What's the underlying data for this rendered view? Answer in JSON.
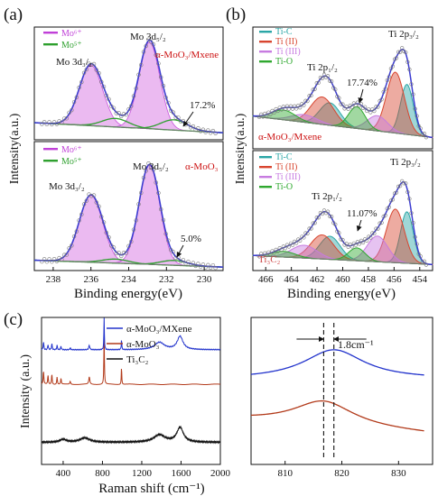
{
  "figure": {
    "panel_letters": [
      "(a)",
      "(b)",
      "(c)"
    ],
    "ylabel_a": "Intensity(a.u.)",
    "ylabel_b": "Intensity(a.u.)",
    "ylabel_c": "Intensity (a.u.)",
    "xlabel_a": "Binding energy(eV)",
    "xlabel_b": "Binding energy(eV)",
    "xlabel_c": "Raman shift (cm⁻¹)"
  },
  "colors": {
    "fit_envelope": "#3b3bd0",
    "mo6_fill": "#e9b3f0",
    "mo6_line": "#c040d8",
    "mo5_line": "#2ea02e",
    "ti_c": "#2aa6a6",
    "ti_ii": "#d8452f",
    "ti_iii": "#c77be0",
    "ti_o": "#2fa82f",
    "raman_blue": "#2233cc",
    "raman_red": "#b23a1a",
    "raman_black": "#111111",
    "label_red": "#cc1111"
  },
  "chart_data": [
    {
      "id": "a-top",
      "type": "line",
      "xlabel": "",
      "xlim": [
        239,
        229
      ],
      "xticks": [
        238,
        236,
        234,
        232,
        230
      ],
      "legend": [
        "Mo⁶⁺",
        "Mo⁵⁺"
      ],
      "sample_label": "α-MoO₃/Mxene",
      "peak_labels": [
        "Mo 3d₃/₂",
        "Mo 3d₅/₂"
      ],
      "annotation": "17.2%",
      "peaks_ev": [
        236.0,
        232.9
      ],
      "mo5_share_percent": 17.2
    },
    {
      "id": "a-bottom",
      "type": "line",
      "xlabel": "Binding energy(eV)",
      "xlim": [
        239,
        229
      ],
      "xticks": [
        238,
        236,
        234,
        232,
        230
      ],
      "legend": [
        "Mo⁶⁺",
        "Mo⁵⁺"
      ],
      "sample_label": "α-MoO₃",
      "peak_labels": [
        "Mo 3d₃/₂",
        "Mo 3d₅/₂"
      ],
      "annotation": "5.0%",
      "peaks_ev": [
        236.0,
        232.9
      ],
      "mo5_share_percent": 5.0
    },
    {
      "id": "b-top",
      "type": "line",
      "xlabel": "",
      "xlim": [
        467,
        453
      ],
      "xticks": [
        466,
        464,
        462,
        460,
        458,
        456,
        454
      ],
      "legend": [
        "Ti-C",
        "Ti (II)",
        "Ti (III)",
        "Ti-O"
      ],
      "sample_label": "α-MoO₃/Mxene",
      "peak_labels": [
        "Ti 2p₁/₂",
        "Ti 2p₃/₂"
      ],
      "annotation": "17.74%",
      "ti_o_share_percent": 17.74
    },
    {
      "id": "b-bottom",
      "type": "line",
      "xlabel": "Binding energy(eV)",
      "xlim": [
        467,
        453
      ],
      "xticks": [
        466,
        464,
        462,
        460,
        458,
        456,
        454
      ],
      "legend": [
        "Ti-C",
        "Ti (II)",
        "Ti (III)",
        "Ti-O"
      ],
      "sample_label": "Ti₃C₂",
      "peak_labels": [
        "Ti 2p₁/₂",
        "Ti 2p₃/₂"
      ],
      "annotation": "11.07%",
      "ti_o_share_percent": 11.07
    },
    {
      "id": "c-left",
      "type": "line",
      "xlabel": "Raman shift (cm⁻¹)",
      "xlim": [
        180,
        2000
      ],
      "xticks": [
        400,
        800,
        1200,
        1600,
        2000
      ],
      "series": [
        {
          "name": "α-MoO₃/MXene",
          "color": "#2233cc"
        },
        {
          "name": "α-MoO₃",
          "color": "#b23a1a"
        },
        {
          "name": "Ti₃C₂",
          "color": "#111111"
        }
      ],
      "major_peaks_cm": [
        817,
        994,
        1380,
        1590
      ]
    },
    {
      "id": "c-right",
      "type": "line",
      "xlabel": "",
      "xlim": [
        804,
        836
      ],
      "xticks": [
        810,
        820,
        830
      ],
      "annotation": "1.8cm⁻¹",
      "series": [
        {
          "name": "α-MoO₃/MXene",
          "color": "#2233cc",
          "peak": 818.6
        },
        {
          "name": "α-MoO₃",
          "color": "#b23a1a",
          "peak": 816.8
        }
      ],
      "peak_shift_cm": 1.8
    }
  ]
}
